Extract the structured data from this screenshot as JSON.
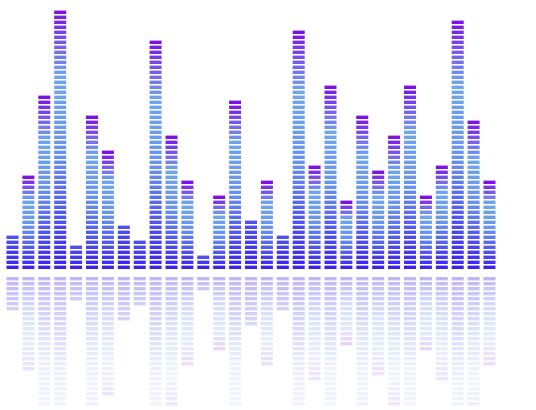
{
  "equalizer": {
    "segments_per_column_max": 52,
    "levels": [
      7,
      19,
      35,
      52,
      5,
      31,
      24,
      9,
      6,
      46,
      27,
      18,
      3,
      15,
      34,
      10,
      18,
      7,
      48,
      21,
      37,
      14,
      31,
      20,
      27,
      37,
      15,
      21,
      50,
      30,
      18
    ],
    "colors": {
      "base": "#3c22ee",
      "mid": "#6fa6ee",
      "peak": "#7e0fe6",
      "gap": "#ffffff"
    },
    "reflection": true
  }
}
